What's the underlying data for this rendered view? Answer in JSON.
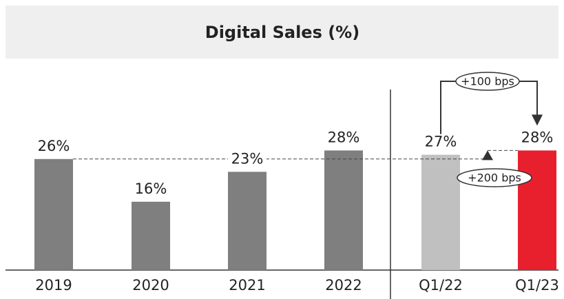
{
  "chart_data": {
    "type": "bar",
    "title": "Digital Sales (%)",
    "categories": [
      "2019",
      "2020",
      "2021",
      "2022",
      "Q1/22",
      "Q1/23"
    ],
    "values": [
      26,
      16,
      23,
      28,
      27,
      28
    ],
    "value_labels": [
      "26%",
      "16%",
      "23%",
      "28%",
      "27%",
      "28%"
    ],
    "colors": [
      "#7f7f7f",
      "#7f7f7f",
      "#7f7f7f",
      "#7f7f7f",
      "#c0c0c0",
      "#e8202e"
    ],
    "ylim": [
      0,
      50
    ],
    "annotations": [
      "+100 bps",
      "+200 bps"
    ]
  }
}
